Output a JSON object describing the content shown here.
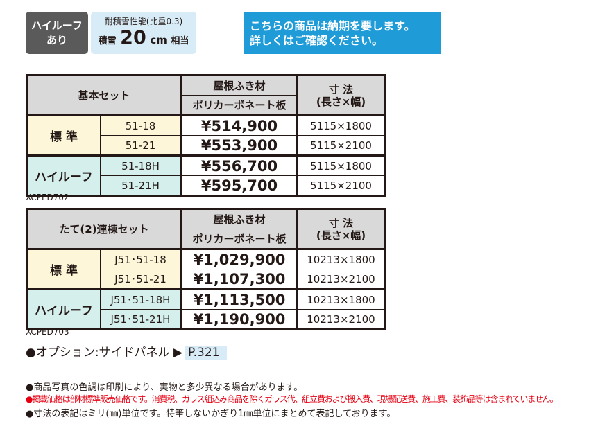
{
  "badge": {
    "lines": [
      "ハイルーフ",
      "あり"
    ]
  },
  "snow": {
    "label": "耐積雪性能(比重0.3)",
    "prefix": "積雪",
    "value": "20",
    "unit": "cm",
    "suffix": "相当"
  },
  "notice": {
    "lines": [
      "こちらの商品は納期を要します。",
      "詳しくはご確認ください。"
    ]
  },
  "tables": [
    {
      "header": {
        "set_name": "基本セット",
        "material_label": "屋根ふき材",
        "material": "ポリカーボネート板",
        "size_label": "寸 法",
        "size_sub": "(長さ×幅)"
      },
      "groups": [
        {
          "label": "標 準",
          "rows": [
            {
              "code": "51-18",
              "price": "¥514,900",
              "size": "5115×1800"
            },
            {
              "code": "51-21",
              "price": "¥553,900",
              "size": "5115×2100"
            }
          ]
        },
        {
          "label": "ハイルーフ",
          "rows": [
            {
              "code": "51-18H",
              "price": "¥556,700",
              "size": "5115×1800"
            },
            {
              "code": "51-21H",
              "price": "¥595,700",
              "size": "5115×2100"
            }
          ]
        }
      ],
      "caption": "XCPED702"
    },
    {
      "header": {
        "set_name": "たて(2)連棟セット",
        "material_label": "屋根ふき材",
        "material": "ポリカーボネート板",
        "size_label": "寸 法",
        "size_sub": "(長さ×幅)"
      },
      "groups": [
        {
          "label": "標 準",
          "rows": [
            {
              "code": "J51･51-18",
              "price": "¥1,029,900",
              "size": "10213×1800"
            },
            {
              "code": "J51･51-21",
              "price": "¥1,107,300",
              "size": "10213×2100"
            }
          ]
        },
        {
          "label": "ハイルーフ",
          "rows": [
            {
              "code": "J51･51-18H",
              "price": "¥1,113,500",
              "size": "10213×1800"
            },
            {
              "code": "J51･51-21H",
              "price": "¥1,190,900",
              "size": "10213×2100"
            }
          ]
        }
      ],
      "caption": "XCPED703"
    }
  ],
  "option": {
    "text": "●オプション:サイドパネル ▶",
    "page": "P.321"
  },
  "notes": [
    "●商品写真の色調は印刷により、実物と多少異なる場合があります。",
    "●掲載価格は部材標準販売価格です。消費税、ガラス組込み商品を除くガラス代、組立費および搬入費、現場配送費、施工費、装飾品等は含まれていません。",
    "●寸法の表記はミリ(㎜)単位です。特筆しないかぎり1㎜単位にまとめて表記しております。"
  ]
}
